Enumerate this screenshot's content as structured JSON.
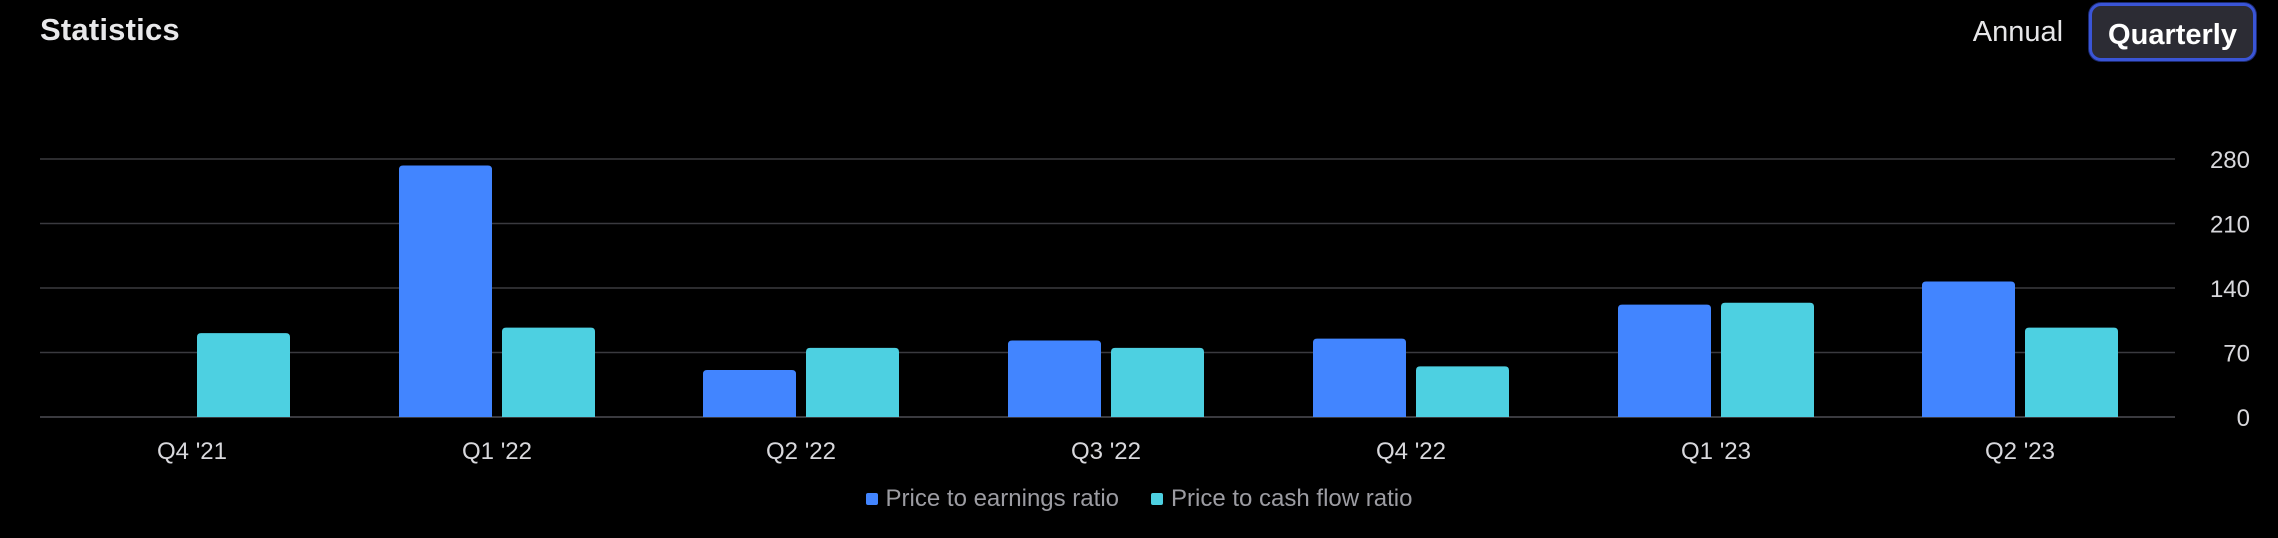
{
  "header": {
    "title": "Statistics",
    "toggle": {
      "annual_label": "Annual",
      "quarterly_label": "Quarterly",
      "selected": "Quarterly"
    }
  },
  "colors": {
    "background": "#000000",
    "pe_series": "#4285ff",
    "pcf_series": "#4dd0e1",
    "gridline": "#3a3a3f",
    "tick_text": "#d8d8dc"
  },
  "chart_data": {
    "type": "bar",
    "categories": [
      "Q4 '21",
      "Q1 '22",
      "Q2 '22",
      "Q3 '22",
      "Q4 '22",
      "Q1 '23",
      "Q2 '23"
    ],
    "series": [
      {
        "name": "Price to earnings ratio",
        "values": [
          null,
          273,
          51,
          83,
          85,
          122,
          147
        ]
      },
      {
        "name": "Price to cash flow ratio",
        "values": [
          91,
          97,
          75,
          75,
          55,
          124,
          97
        ]
      }
    ],
    "ylim": [
      0,
      280
    ],
    "yticks": [
      "0",
      "70",
      "140",
      "210",
      "280"
    ],
    "y_axis_position": "right",
    "grid": true,
    "legend_placement": "bottom-center"
  }
}
